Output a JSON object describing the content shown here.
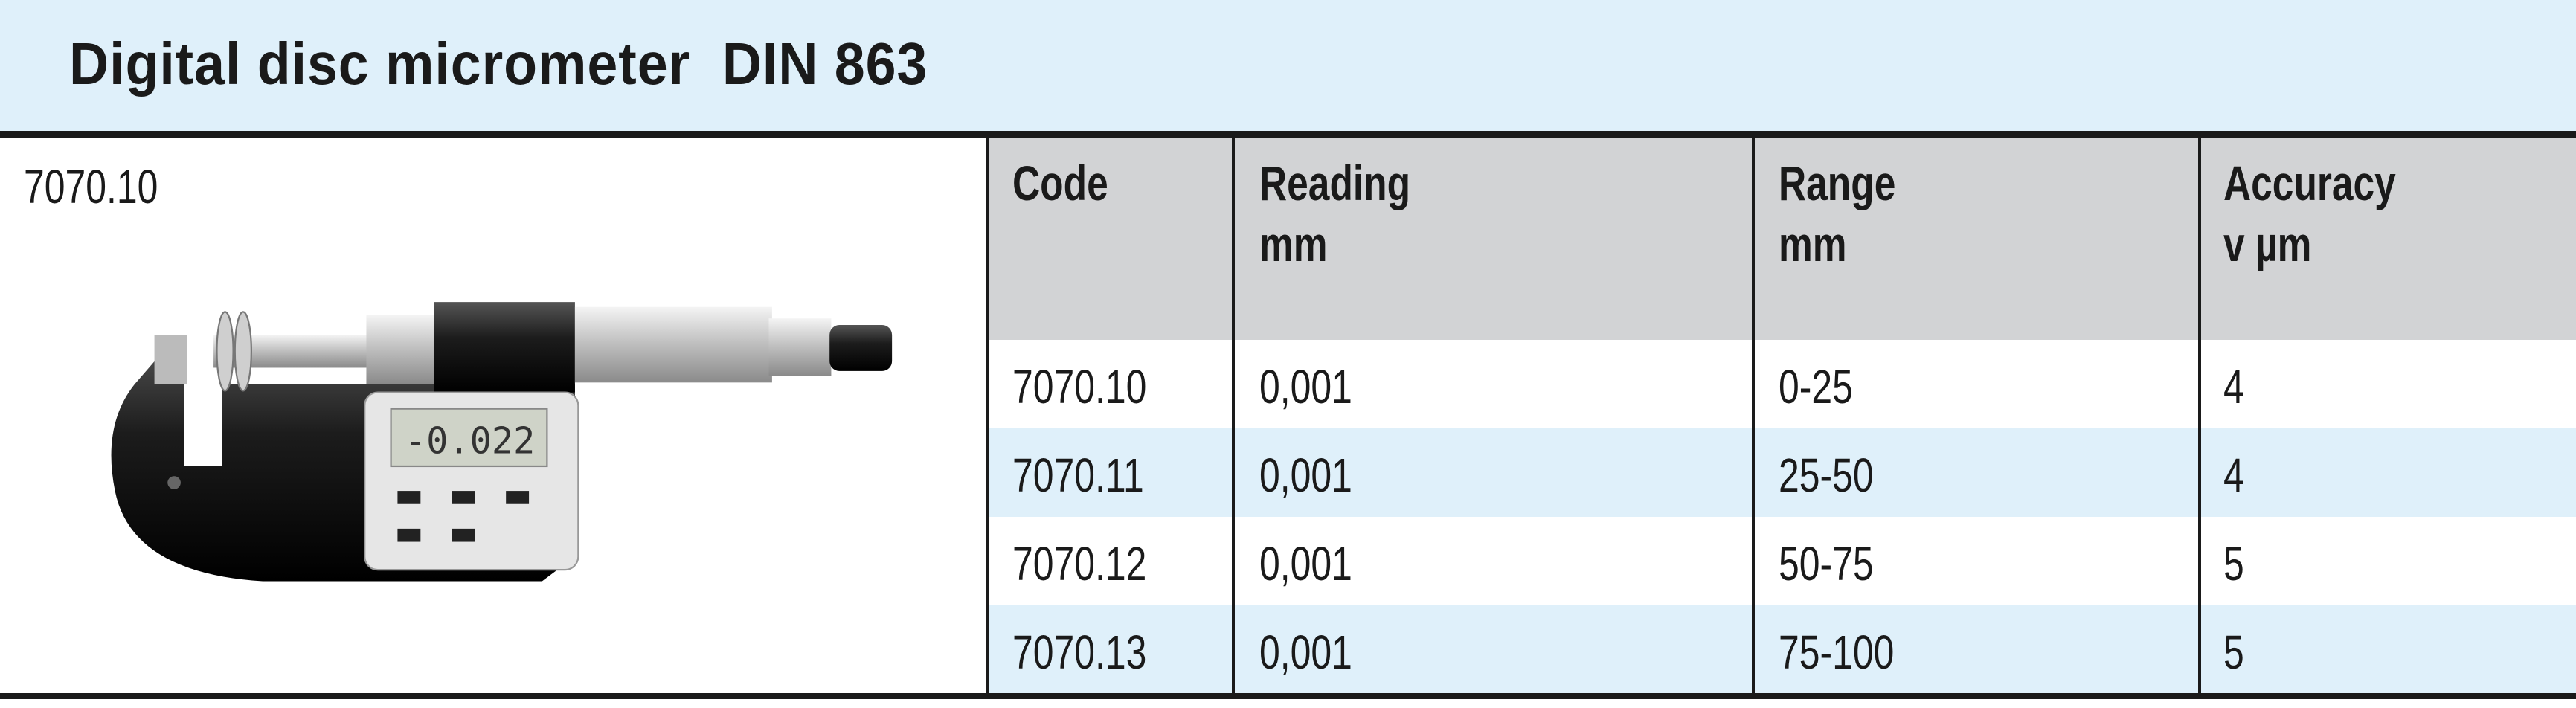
{
  "header": {
    "title": "Digital disc micrometer  DIN 863"
  },
  "product": {
    "code": "7070.10",
    "display_reading": "-0.022"
  },
  "table": {
    "columns": [
      {
        "label": "Code",
        "unit": ""
      },
      {
        "label": "Reading",
        "unit": "mm"
      },
      {
        "label": "Range",
        "unit": "mm"
      },
      {
        "label": "Accuracy",
        "unit": "v µm"
      }
    ],
    "rows": [
      {
        "code": "7070.10",
        "reading": "0,001",
        "range": "0-25",
        "accuracy": "4"
      },
      {
        "code": "7070.11",
        "reading": "0,001",
        "range": "25-50",
        "accuracy": "4"
      },
      {
        "code": "7070.12",
        "reading": "0,001",
        "range": "50-75",
        "accuracy": "5"
      },
      {
        "code": "7070.13",
        "reading": "0,001",
        "range": "75-100",
        "accuracy": "5"
      }
    ]
  },
  "colors": {
    "title_bg": "#dff0fa",
    "header_bg": "#d2d3d5",
    "stripe_bg": "#dff0fa",
    "rule": "#1a1a1a"
  }
}
